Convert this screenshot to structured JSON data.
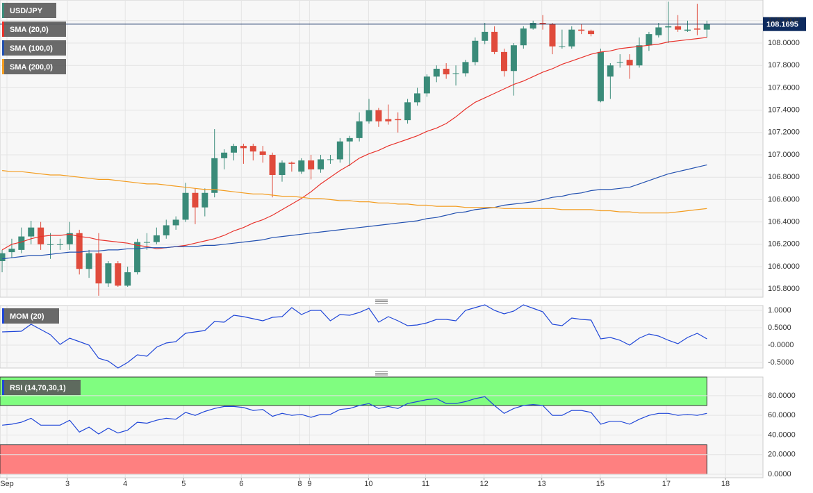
{
  "chart_data": [
    {
      "type": "candlestick",
      "title": "USD/JPY",
      "color_up": "#3a8b79",
      "color_down": "#e04b3c",
      "open": [
        106.05,
        106.13,
        106.15,
        106.27,
        106.35,
        106.2,
        106.2,
        106.2,
        106.3,
        105.98,
        106.12,
        105.85,
        106.03,
        105.83,
        105.95,
        106.22,
        106.22,
        106.28,
        106.37,
        106.42,
        106.66,
        106.53,
        106.66,
        106.97,
        107.02,
        107.08,
        107.08,
        107.03,
        107.0,
        106.82,
        106.93,
        106.85,
        106.95,
        106.87,
        106.96,
        106.96,
        107.12,
        107.15,
        107.3,
        107.4,
        107.32,
        107.32,
        107.31,
        107.47,
        107.55,
        107.7,
        107.77,
        107.73,
        107.73,
        107.83,
        108.02,
        108.1,
        107.92,
        107.75,
        107.98,
        108.13,
        108.18,
        108.17,
        107.97,
        107.97,
        108.12,
        108.11,
        107.48,
        107.7,
        107.83,
        107.85,
        107.8,
        107.98,
        108.07,
        108.14,
        108.15,
        108.11,
        108.13,
        108.12
      ],
      "high": [
        106.15,
        106.25,
        106.35,
        106.41,
        106.4,
        106.3,
        106.25,
        106.4,
        106.33,
        106.15,
        106.3,
        106.05,
        106.05,
        106.0,
        106.25,
        106.3,
        106.35,
        106.42,
        106.45,
        106.75,
        106.7,
        106.7,
        107.23,
        107.05,
        107.1,
        107.1,
        107.1,
        107.08,
        107.02,
        106.95,
        106.94,
        106.97,
        107.0,
        107.0,
        107.0,
        107.15,
        107.17,
        107.38,
        107.5,
        107.42,
        107.45,
        107.38,
        107.5,
        107.6,
        107.72,
        107.8,
        107.82,
        107.8,
        107.85,
        108.05,
        108.18,
        108.15,
        107.95,
        108.0,
        108.15,
        108.2,
        108.25,
        108.18,
        108.12,
        108.15,
        108.17,
        108.12,
        107.95,
        107.82,
        107.9,
        107.9,
        108.05,
        108.1,
        108.18,
        108.37,
        108.25,
        108.2,
        108.35,
        108.2
      ],
      "low": [
        105.95,
        106.08,
        106.12,
        106.2,
        106.15,
        106.07,
        106.15,
        106.15,
        105.93,
        105.9,
        105.74,
        105.82,
        105.82,
        105.82,
        105.93,
        106.15,
        106.2,
        106.25,
        106.33,
        106.4,
        106.38,
        106.45,
        106.62,
        106.87,
        106.95,
        106.92,
        106.95,
        106.93,
        106.62,
        106.76,
        106.85,
        106.83,
        106.78,
        106.84,
        106.92,
        106.93,
        106.9,
        107.12,
        107.28,
        107.25,
        107.27,
        107.2,
        107.28,
        107.44,
        107.52,
        107.65,
        107.68,
        107.62,
        107.7,
        107.8,
        107.99,
        107.9,
        107.7,
        107.53,
        107.95,
        108.12,
        108.12,
        107.9,
        107.95,
        107.95,
        108.08,
        108.06,
        107.47,
        107.5,
        107.78,
        107.68,
        107.78,
        107.93,
        108.05,
        108.0,
        108.1,
        108.1,
        108.07,
        108.05
      ],
      "close": [
        106.12,
        106.16,
        106.27,
        106.35,
        106.2,
        106.2,
        106.2,
        106.3,
        105.98,
        106.12,
        105.85,
        106.03,
        105.83,
        105.95,
        106.22,
        106.22,
        106.28,
        106.37,
        106.42,
        106.66,
        106.53,
        106.66,
        106.97,
        107.02,
        107.08,
        107.06,
        107.03,
        107.0,
        106.82,
        106.93,
        106.92,
        106.95,
        106.87,
        106.96,
        106.96,
        107.12,
        107.15,
        107.3,
        107.4,
        107.3,
        107.3,
        107.31,
        107.47,
        107.55,
        107.7,
        107.77,
        107.72,
        107.73,
        107.83,
        108.02,
        108.1,
        107.92,
        107.75,
        107.98,
        108.13,
        108.18,
        108.17,
        107.97,
        107.97,
        108.12,
        108.11,
        108.08,
        107.92,
        107.8,
        107.83,
        107.8,
        107.98,
        108.08,
        108.14,
        108.15,
        108.12,
        108.12,
        108.12,
        108.17
      ],
      "series": [
        {
          "name": "SMA (20,0)",
          "color": "#e8312a",
          "values": [
            106.15,
            106.2,
            106.22,
            106.25,
            106.27,
            106.28,
            106.28,
            106.29,
            106.27,
            106.26,
            106.24,
            106.23,
            106.22,
            106.21,
            106.19,
            106.18,
            106.16,
            106.17,
            106.18,
            106.19,
            106.21,
            106.23,
            106.25,
            106.28,
            106.32,
            106.35,
            106.39,
            106.42,
            106.46,
            106.51,
            106.56,
            106.61,
            106.67,
            106.74,
            106.8,
            106.86,
            106.91,
            106.97,
            107.01,
            107.04,
            107.08,
            107.11,
            107.14,
            107.17,
            107.21,
            107.24,
            107.28,
            107.34,
            107.41,
            107.47,
            107.51,
            107.55,
            107.59,
            107.63,
            107.66,
            107.7,
            107.74,
            107.77,
            107.81,
            107.84,
            107.87,
            107.9,
            107.92,
            107.93,
            107.95,
            107.96,
            107.97,
            107.98,
            107.99,
            108.01,
            108.02,
            108.03,
            108.04,
            108.05
          ]
        },
        {
          "name": "SMA (100,0)",
          "color": "#2250b0",
          "values": [
            106.07,
            106.08,
            106.09,
            106.1,
            106.1,
            106.11,
            106.12,
            106.13,
            106.13,
            106.14,
            106.14,
            106.15,
            106.15,
            106.16,
            106.16,
            106.17,
            106.17,
            106.17,
            106.18,
            106.18,
            106.18,
            106.19,
            106.19,
            106.2,
            106.21,
            106.22,
            106.23,
            106.24,
            106.26,
            106.27,
            106.28,
            106.29,
            106.3,
            106.31,
            106.32,
            106.33,
            106.34,
            106.35,
            106.36,
            106.37,
            106.38,
            106.39,
            106.4,
            106.41,
            106.43,
            106.44,
            106.46,
            106.48,
            106.49,
            106.51,
            106.52,
            106.53,
            106.55,
            106.56,
            106.57,
            106.58,
            106.6,
            106.62,
            106.63,
            106.65,
            106.66,
            106.68,
            106.69,
            106.69,
            106.7,
            106.71,
            106.74,
            106.77,
            106.8,
            106.83,
            106.85,
            106.87,
            106.89,
            106.91
          ]
        },
        {
          "name": "SMA (200,0)",
          "color": "#f39c1f",
          "values": [
            106.86,
            106.85,
            106.85,
            106.84,
            106.83,
            106.82,
            106.82,
            106.81,
            106.8,
            106.79,
            106.78,
            106.78,
            106.77,
            106.76,
            106.75,
            106.74,
            106.74,
            106.73,
            106.72,
            106.71,
            106.7,
            106.69,
            106.69,
            106.68,
            106.67,
            106.66,
            106.65,
            106.65,
            106.64,
            106.63,
            106.63,
            106.62,
            106.61,
            106.61,
            106.6,
            106.59,
            106.59,
            106.58,
            106.58,
            106.57,
            106.57,
            106.56,
            106.56,
            106.55,
            106.55,
            106.54,
            106.54,
            106.54,
            106.53,
            106.53,
            106.53,
            106.53,
            106.52,
            106.52,
            106.52,
            106.52,
            106.52,
            106.52,
            106.51,
            106.51,
            106.51,
            106.51,
            106.5,
            106.5,
            106.49,
            106.49,
            106.48,
            106.48,
            106.48,
            106.48,
            106.49,
            106.5,
            106.51,
            106.52
          ]
        }
      ],
      "last_price": {
        "value": 108.1695,
        "label": "108.1695"
      },
      "last_price_color": "#0d2a5e",
      "ylim": [
        105.727,
        108.385
      ],
      "yticks": [
        {
          "value": 105.8,
          "label": "105.8000"
        },
        {
          "value": 106,
          "label": "106.0000"
        },
        {
          "value": 106.2,
          "label": "106.2000"
        },
        {
          "value": 106.4,
          "label": "106.4000"
        },
        {
          "value": 106.6,
          "label": "106.6000"
        },
        {
          "value": 106.8,
          "label": "106.8000"
        },
        {
          "value": 107,
          "label": "107.0000"
        },
        {
          "value": 107.2,
          "label": "107.2000"
        },
        {
          "value": 107.4,
          "label": "107.4000"
        },
        {
          "value": 107.6,
          "label": "107.6000"
        },
        {
          "value": 107.8,
          "label": "107.8000"
        },
        {
          "value": 108,
          "label": "108.0000"
        },
        {
          "value": 108.2,
          "label": "108.2000"
        }
      ],
      "grid": true
    },
    {
      "type": "line",
      "series": [
        {
          "name": "MOM (20)",
          "color": "#1f46d8",
          "values": [
            0.38,
            0.39,
            0.4,
            0.6,
            0.45,
            0.3,
            0.02,
            0.2,
            0.1,
            0,
            -0.38,
            -0.46,
            -0.66,
            -0.5,
            -0.28,
            -0.32,
            -0.06,
            0.06,
            0.1,
            0.34,
            0.38,
            0.42,
            0.68,
            0.66,
            0.86,
            0.82,
            0.76,
            0.7,
            0.8,
            0.82,
            1.08,
            0.88,
            1.0,
            1.0,
            0.7,
            0.88,
            0.86,
            0.94,
            1.06,
            0.66,
            0.82,
            0.7,
            0.56,
            0.58,
            0.64,
            0.74,
            0.74,
            0.7,
            1.0,
            1.08,
            1.16,
            1.0,
            0.9,
            0.98,
            1.16,
            1.06,
            0.96,
            0.6,
            0.56,
            0.78,
            0.74,
            0.72,
            0.18,
            0.22,
            0.14,
            0,
            0.2,
            0.32,
            0.26,
            0.14,
            0.04,
            0.22,
            0.34,
            0.18
          ]
        }
      ],
      "ylim": [
        -0.66,
        1.14
      ],
      "yticks": [
        {
          "value": -0.5,
          "label": "-0.5000"
        },
        {
          "value": 0,
          "label": "-0.0000"
        },
        {
          "value": 0.5,
          "label": "0.5000"
        },
        {
          "value": 1,
          "label": "1.0000"
        }
      ],
      "grid": true
    },
    {
      "type": "line",
      "series": [
        {
          "name": "RSI (14,70,30,1)",
          "color": "#1f46d8",
          "values": [
            50,
            51,
            53,
            57,
            50,
            50,
            50,
            55,
            43,
            48,
            41,
            47,
            42,
            45,
            53,
            52,
            55,
            57,
            56,
            63,
            60,
            64,
            67,
            69,
            69,
            68,
            65,
            66,
            59,
            62,
            60,
            61,
            58,
            61,
            61,
            66,
            67,
            70,
            72,
            67,
            69,
            67,
            72,
            74,
            76,
            77,
            72,
            72,
            74,
            77,
            79,
            70,
            62,
            67,
            70,
            71,
            70,
            60,
            60,
            65,
            65,
            63,
            51,
            54,
            54,
            51,
            56,
            60,
            62,
            62,
            60,
            61,
            60,
            62
          ]
        }
      ],
      "bands": [
        {
          "from": 70,
          "to": 99,
          "color": "#80fd80"
        },
        {
          "from": 0,
          "to": 30,
          "color": "#fe8080"
        }
      ],
      "ylim": [
        -3.5,
        99
      ],
      "yticks": [
        {
          "value": 0,
          "label": "0.0000"
        },
        {
          "value": 20,
          "label": "20.0000"
        },
        {
          "value": 40,
          "label": "40.0000"
        },
        {
          "value": 60,
          "label": "60.0000"
        },
        {
          "value": 80,
          "label": "80.0000"
        }
      ],
      "grid": true,
      "xlim": [
        -0.22,
        78.81
      ],
      "xticks": [
        {
          "value": 0.5,
          "label": "Sep"
        },
        {
          "value": 6.77,
          "label": "3"
        },
        {
          "value": 12.75,
          "label": "4"
        },
        {
          "value": 18.8,
          "label": "5"
        },
        {
          "value": 24.78,
          "label": "6"
        },
        {
          "value": 30.83,
          "label": "8"
        },
        {
          "value": 31.84,
          "label": "9"
        },
        {
          "value": 37.96,
          "label": "10"
        },
        {
          "value": 43.87,
          "label": "11"
        },
        {
          "value": 49.92,
          "label": "12"
        },
        {
          "value": 55.9,
          "label": "13"
        },
        {
          "value": 61.96,
          "label": "15"
        },
        {
          "value": 68.8,
          "label": "17"
        },
        {
          "value": 74.92,
          "label": "18"
        }
      ]
    }
  ]
}
